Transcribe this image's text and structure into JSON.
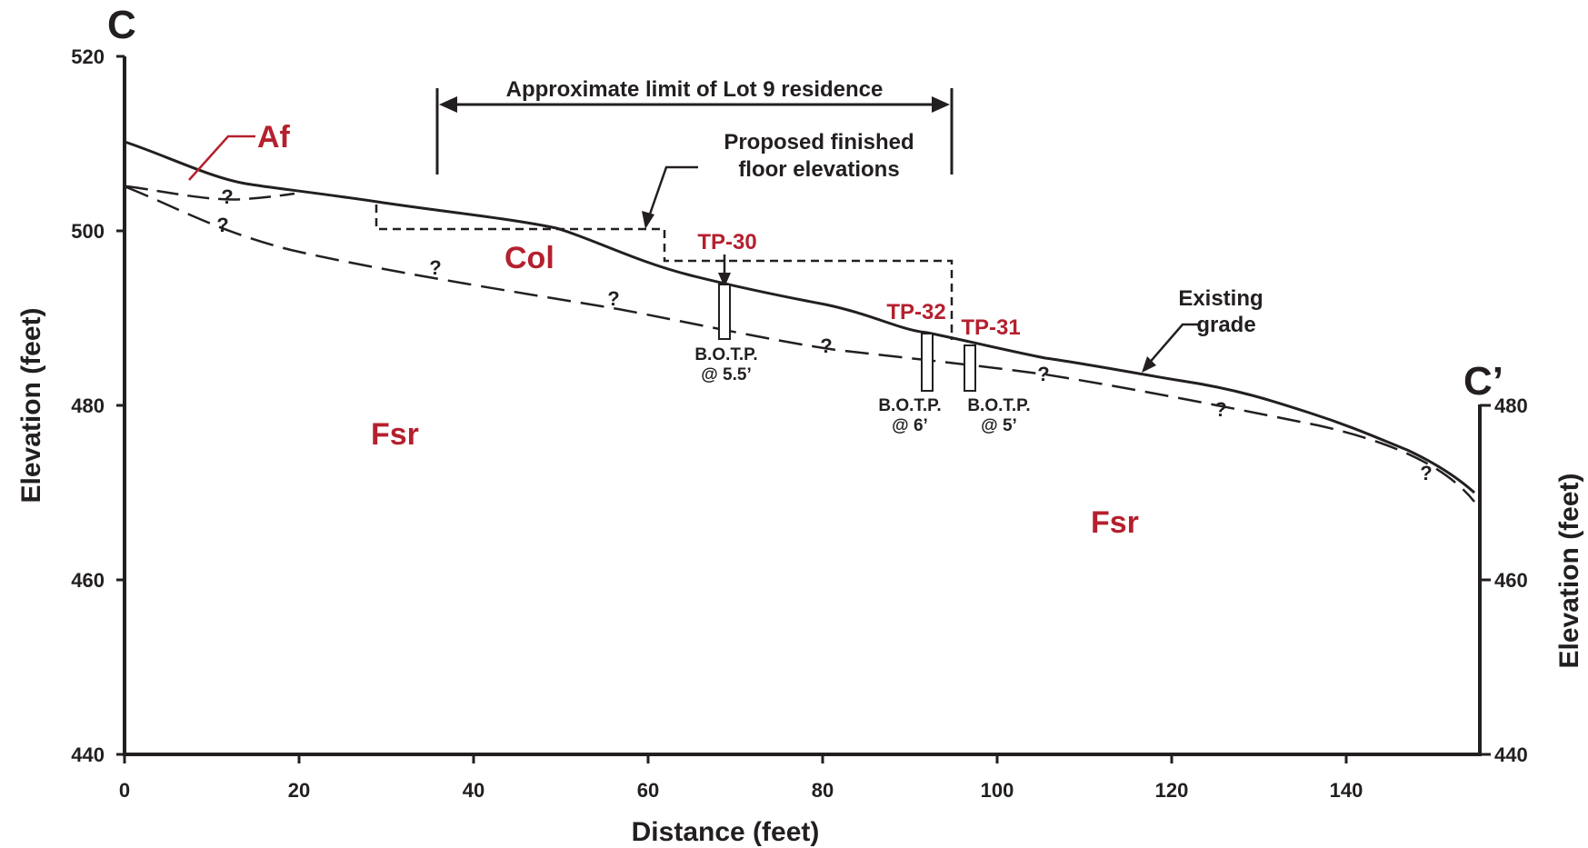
{
  "section": {
    "start_label": "C",
    "end_label": "C’"
  },
  "axes": {
    "x_title": "Distance (feet)",
    "y_title": "Elevation (feet)",
    "x_ticks": [
      "0",
      "20",
      "40",
      "60",
      "80",
      "100",
      "120",
      "140"
    ],
    "y_ticks": [
      "520",
      "500",
      "480",
      "460",
      "440"
    ],
    "right_y_ticks": [
      "480",
      "460",
      "440"
    ]
  },
  "annotations": {
    "limit": "Approximate limit of Lot 9 residence",
    "floor_line1": "Proposed finished",
    "floor_line2": "floor elevations",
    "grade_line1": "Existing",
    "grade_line2": "grade",
    "uncertain": "?"
  },
  "units": {
    "af": "Af",
    "col": "Col",
    "fsr_left": "Fsr",
    "fsr_right": "Fsr"
  },
  "test_pits": [
    {
      "name": "TP-30",
      "botp_line1": "B.O.T.P.",
      "botp_line2": "@ 5.5’"
    },
    {
      "name": "TP-32",
      "botp_line1": "B.O.T.P.",
      "botp_line2": "@ 6’"
    },
    {
      "name": "TP-31",
      "botp_line1": "B.O.T.P.",
      "botp_line2": "@ 5’"
    }
  ],
  "colors": {
    "unit_label": "#b5202e",
    "line": "#231f20"
  }
}
